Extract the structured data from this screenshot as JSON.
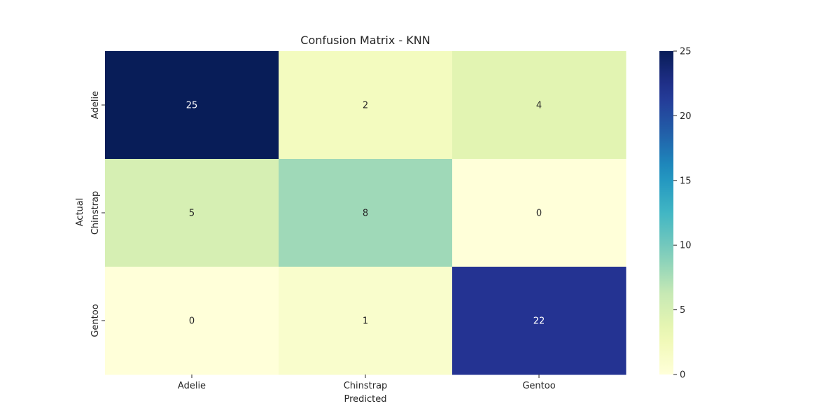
{
  "chart_data": {
    "type": "heatmap",
    "title": "Confusion Matrix - KNN",
    "xlabel": "Predicted",
    "ylabel": "Actual",
    "x_categories": [
      "Adelie",
      "Chinstrap",
      "Gentoo"
    ],
    "y_categories": [
      "Adelie",
      "Chinstrap",
      "Gentoo"
    ],
    "values": [
      [
        25,
        2,
        4
      ],
      [
        5,
        8,
        0
      ],
      [
        0,
        1,
        22
      ]
    ],
    "colormap": "YlGnBu",
    "vmin": 0,
    "vmax": 25,
    "colorbar_ticks": [
      0,
      5,
      10,
      15,
      20,
      25
    ],
    "annotations": true
  }
}
